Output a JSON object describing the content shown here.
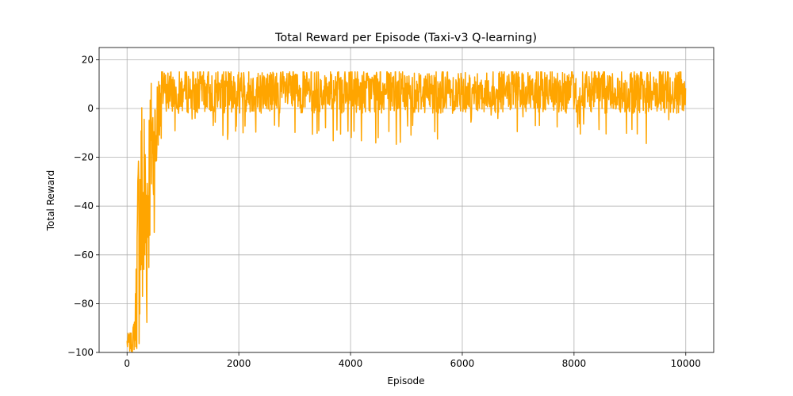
{
  "chart_data": {
    "type": "line",
    "title": "Total Reward per Episode (Taxi-v3 Q-learning)",
    "xlabel": "Episode",
    "ylabel": "Total Reward",
    "xlim": [
      -500,
      10500
    ],
    "ylim": [
      -100,
      25
    ],
    "x_ticks": [
      0,
      2000,
      4000,
      6000,
      8000,
      10000
    ],
    "y_ticks": [
      -100,
      -80,
      -60,
      -40,
      -20,
      0,
      20
    ],
    "x_tick_labels": [
      "0",
      "2000",
      "4000",
      "6000",
      "8000",
      "10000"
    ],
    "y_tick_labels": [
      "−100",
      "−80",
      "−60",
      "−40",
      "−20",
      "0",
      "20"
    ],
    "grid": true,
    "line_color": "#FFA500",
    "series": [
      {
        "episodes": [
          0,
          10000
        ],
        "profile": [
          {
            "x": 100,
            "min": -100,
            "max": -92
          },
          {
            "x": 150,
            "min": -100,
            "max": -73
          },
          {
            "x": 200,
            "min": -100,
            "max": -8
          },
          {
            "x": 250,
            "min": -100,
            "max": 15
          },
          {
            "x": 300,
            "min": -100,
            "max": 14
          },
          {
            "x": 350,
            "min": -100,
            "max": 12
          },
          {
            "x": 400,
            "min": -65,
            "max": 14
          },
          {
            "x": 450,
            "min": -40,
            "max": 15
          },
          {
            "x": 500,
            "min": -55,
            "max": 15
          },
          {
            "x": 550,
            "min": -17,
            "max": 15
          },
          {
            "x": 600,
            "min": -16,
            "max": 15
          },
          {
            "x": 700,
            "min": -13,
            "max": 15
          },
          {
            "x": 800,
            "min": -15,
            "max": 15
          },
          {
            "x": 1000,
            "min": -6,
            "max": 15
          },
          {
            "x": 1500,
            "min": -5,
            "max": 15
          },
          {
            "x": 1650,
            "min": -13,
            "max": 15
          },
          {
            "x": 3500,
            "min": -14,
            "max": 15
          },
          {
            "x": 4200,
            "min": -16,
            "max": 15
          },
          {
            "x": 5800,
            "min": -13,
            "max": 15
          },
          {
            "x": 6000,
            "min": -6,
            "max": 15
          },
          {
            "x": 7700,
            "min": -13,
            "max": 15
          },
          {
            "x": 9100,
            "min": -14,
            "max": 15
          },
          {
            "x": 9500,
            "min": -16,
            "max": 15
          },
          {
            "x": 10000,
            "min": -1,
            "max": 15
          }
        ]
      }
    ]
  }
}
